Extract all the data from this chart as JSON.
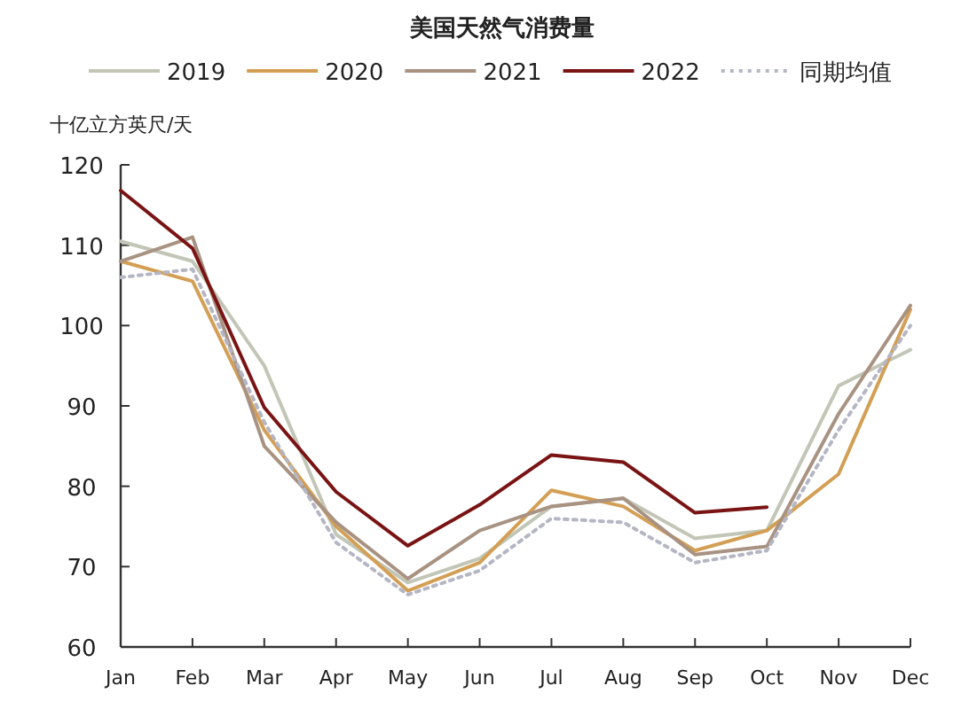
{
  "chart_data": {
    "type": "line",
    "title": "美国天然气消费量",
    "ylabel": "十亿立方英尺/天",
    "categories": [
      "Jan",
      "Feb",
      "Mar",
      "Apr",
      "May",
      "Jun",
      "Jul",
      "Aug",
      "Sep",
      "Oct",
      "Nov",
      "Dec"
    ],
    "series": [
      {
        "name": "2019",
        "color": "#c2c6b6",
        "values": [
          110.5,
          108,
          95,
          74,
          68,
          71,
          77.5,
          78.5,
          73.5,
          74.5,
          92.5,
          97
        ]
      },
      {
        "name": "2020",
        "color": "#d39f55",
        "values": [
          108,
          105.5,
          87,
          75,
          67,
          70.5,
          79.5,
          77.5,
          72,
          74.5,
          81.5,
          102
        ]
      },
      {
        "name": "2021",
        "color": "#a89282",
        "values": [
          108,
          111,
          85,
          75.5,
          68.5,
          74.5,
          77.5,
          78.5,
          71.5,
          72.5,
          89,
          102.5
        ]
      },
      {
        "name": "2022",
        "color": "#7a1414",
        "values": [
          116.8,
          109.6,
          89.8,
          79.3,
          72.6,
          77.7,
          83.9,
          83,
          76.7,
          77.4,
          null,
          null
        ]
      },
      {
        "name": "同期均值",
        "color": "#b4b6c4",
        "line_style": "dotted",
        "values": [
          106,
          107,
          88,
          73,
          66.5,
          69.5,
          76,
          75.5,
          70.5,
          72,
          87,
          100
        ]
      }
    ],
    "ylim": [
      60,
      120
    ],
    "yticks": [
      60,
      70,
      80,
      90,
      100,
      110,
      120
    ],
    "grid": false,
    "legend": "top",
    "marker": "none",
    "line_style": "solid"
  }
}
